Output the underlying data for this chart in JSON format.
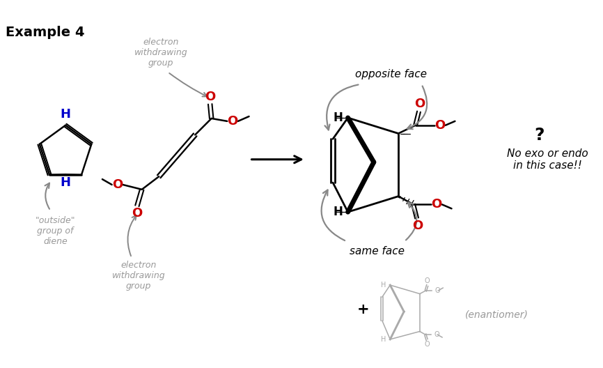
{
  "bg_color": "#ffffff",
  "title_text": "Example 4",
  "title_color": "#000000",
  "label_ewg_top": "electron\nwithdrawing\ngroup",
  "label_ewg_bottom": "electron\nwithdrawing\ngroup",
  "label_outside": "\"outside\"\ngroup of\ndiene",
  "label_opposite": "opposite face",
  "label_same": "same face",
  "label_question": "?",
  "label_noexo": "No exo or endo\nin this case!!",
  "label_enantiomer": "(enantiomer)",
  "gray_color": "#999999",
  "red_color": "#cc0000",
  "blue_color": "#0000cc",
  "black_color": "#000000",
  "arrow_color": "#888888"
}
